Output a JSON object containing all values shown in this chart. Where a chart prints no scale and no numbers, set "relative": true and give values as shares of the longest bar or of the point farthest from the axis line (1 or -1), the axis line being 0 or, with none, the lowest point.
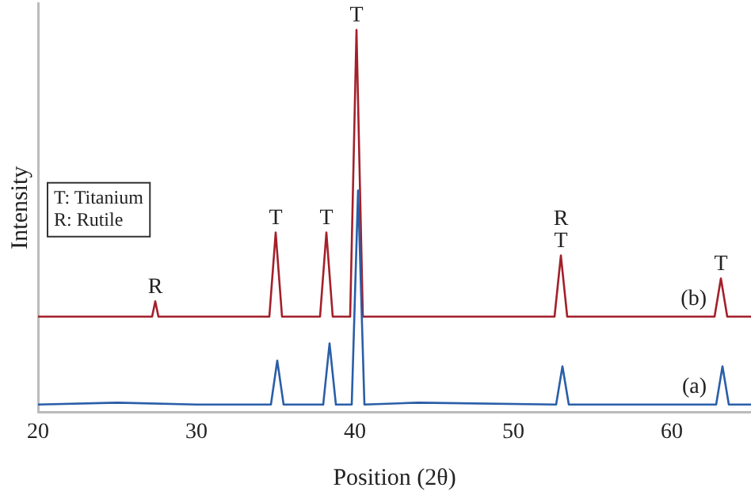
{
  "chart_data": {
    "type": "line",
    "relative": true,
    "xlabel": "Position (2θ)",
    "ylabel": "Intensity",
    "xlim": [
      20,
      65
    ],
    "xticks": [
      20,
      30,
      40,
      50,
      60
    ],
    "grid": false,
    "legend": false,
    "marker": "none",
    "line_style": "solid",
    "series": [
      {
        "name": "(a)",
        "color": "#2a5ea8",
        "x": [
          20,
          25,
          30,
          34.7,
          35.1,
          35.5,
          38.0,
          38.4,
          38.8,
          39.8,
          40.2,
          40.6,
          44,
          52.7,
          53.1,
          53.5,
          62.8,
          63.2,
          63.6,
          65
        ],
        "values": [
          0.02,
          0.025,
          0.02,
          0.02,
          0.135,
          0.02,
          0.02,
          0.18,
          0.02,
          0.02,
          0.58,
          0.02,
          0.025,
          0.02,
          0.12,
          0.02,
          0.02,
          0.12,
          0.02,
          0.02
        ]
      },
      {
        "name": "(b)",
        "color": "#a3202a",
        "x": [
          20,
          25,
          27.2,
          27.4,
          27.6,
          30,
          34.6,
          35.0,
          35.4,
          37.8,
          38.2,
          38.6,
          39.7,
          40.1,
          40.5,
          45,
          52.6,
          53.0,
          53.4,
          62.7,
          63.1,
          63.5,
          65
        ],
        "values": [
          0.25,
          0.25,
          0.25,
          0.29,
          0.25,
          0.25,
          0.25,
          0.47,
          0.25,
          0.25,
          0.47,
          0.25,
          0.25,
          1,
          0.25,
          0.25,
          0.25,
          0.41,
          0.25,
          0.25,
          0.35,
          0.25,
          0.25
        ]
      }
    ],
    "annotations": [
      "T: Titanium",
      "R: Rutile",
      {
        "text": "R",
        "x": 27.4,
        "y": 0.29
      },
      {
        "text": "T",
        "x": 35.0,
        "y": 0.47
      },
      {
        "text": "T",
        "x": 38.2,
        "y": 0.47
      },
      {
        "text": "T",
        "x": 40.1,
        "y": 1
      },
      {
        "text": "T",
        "x": 53.0,
        "y": 0.41
      },
      {
        "text": "R",
        "x": 53.0,
        "y": 0.41
      },
      {
        "text": "T",
        "x": 63.1,
        "y": 0.35
      }
    ]
  }
}
